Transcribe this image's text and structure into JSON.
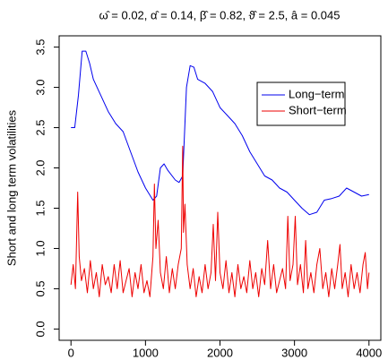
{
  "chart_data": {
    "type": "line",
    "title": "ω̂ = 0.02, α̂ = 0.14, β̂ = 0.82, ϑ̂ = 2.5, â = 0.045",
    "y_label": "Short and long term volatilities",
    "xlim": [
      -159,
      4159
    ],
    "ylim": [
      -0.14,
      3.64
    ],
    "xticks": [
      0,
      1000,
      2000,
      3000,
      4000
    ],
    "yticks": [
      {
        "value": 0,
        "label": "0.0"
      },
      0.5,
      {
        "value": 1,
        "label": "1.0"
      },
      1.5,
      {
        "value": 2,
        "label": "2.0"
      },
      2.5,
      {
        "value": 3,
        "label": "3.0"
      },
      3.5
    ],
    "series": [
      {
        "name": "Long−term",
        "color": "#0000ee",
        "x": [
          0,
          50,
          100,
          150,
          200,
          250,
          300,
          400,
          500,
          600,
          700,
          800,
          900,
          1000,
          1100,
          1150,
          1200,
          1250,
          1300,
          1400,
          1450,
          1500,
          1550,
          1600,
          1650,
          1700,
          1800,
          1900,
          2000,
          2100,
          2200,
          2300,
          2400,
          2500,
          2600,
          2700,
          2800,
          2900,
          3000,
          3100,
          3200,
          3300,
          3400,
          3500,
          3600,
          3700,
          3800,
          3900,
          4000
        ],
        "values": [
          2.5,
          2.5,
          2.9,
          3.45,
          3.45,
          3.3,
          3.1,
          2.9,
          2.7,
          2.55,
          2.45,
          2.2,
          1.95,
          1.75,
          1.6,
          1.65,
          2.0,
          2.05,
          1.97,
          1.85,
          1.82,
          1.9,
          3.0,
          3.27,
          3.25,
          3.1,
          3.05,
          2.95,
          2.75,
          2.65,
          2.55,
          2.4,
          2.2,
          2.05,
          1.9,
          1.85,
          1.75,
          1.7,
          1.6,
          1.5,
          1.42,
          1.45,
          1.6,
          1.62,
          1.65,
          1.75,
          1.7,
          1.65,
          1.67
        ]
      },
      {
        "name": "Short−term",
        "color": "#ee0000",
        "x": [
          0,
          30,
          60,
          90,
          110,
          140,
          180,
          220,
          260,
          300,
          340,
          380,
          420,
          460,
          500,
          540,
          580,
          620,
          660,
          700,
          740,
          780,
          820,
          860,
          900,
          940,
          980,
          1020,
          1060,
          1100,
          1120,
          1140,
          1170,
          1200,
          1240,
          1280,
          1320,
          1360,
          1400,
          1440,
          1480,
          1500,
          1510,
          1530,
          1560,
          1600,
          1640,
          1680,
          1720,
          1760,
          1800,
          1840,
          1880,
          1910,
          1940,
          1970,
          2000,
          2040,
          2080,
          2120,
          2160,
          2200,
          2240,
          2280,
          2320,
          2360,
          2400,
          2440,
          2480,
          2520,
          2560,
          2600,
          2640,
          2680,
          2720,
          2760,
          2800,
          2840,
          2880,
          2910,
          2940,
          2980,
          3010,
          3040,
          3080,
          3120,
          3150,
          3180,
          3220,
          3260,
          3300,
          3340,
          3380,
          3420,
          3460,
          3500,
          3540,
          3580,
          3610,
          3640,
          3680,
          3720,
          3760,
          3800,
          3840,
          3880,
          3920,
          3950,
          3980,
          4000
        ],
        "values": [
          0.55,
          0.8,
          0.5,
          1.7,
          0.9,
          0.6,
          0.75,
          0.45,
          0.85,
          0.5,
          0.7,
          0.4,
          0.8,
          0.55,
          0.65,
          0.45,
          0.8,
          0.5,
          0.85,
          0.45,
          0.6,
          0.75,
          0.4,
          0.7,
          0.5,
          0.8,
          0.45,
          0.6,
          0.4,
          0.9,
          1.8,
          1.0,
          1.35,
          0.7,
          0.5,
          0.9,
          0.45,
          0.75,
          0.5,
          0.8,
          1.0,
          2.27,
          1.2,
          1.55,
          0.8,
          0.5,
          0.75,
          0.4,
          0.65,
          0.45,
          0.8,
          0.5,
          0.7,
          1.3,
          0.6,
          1.45,
          0.7,
          0.5,
          0.85,
          0.45,
          0.7,
          0.4,
          0.8,
          0.5,
          0.65,
          0.45,
          0.85,
          0.5,
          0.7,
          0.4,
          0.75,
          0.55,
          1.1,
          0.5,
          0.8,
          0.45,
          0.6,
          0.75,
          0.5,
          1.4,
          0.6,
          0.8,
          1.4,
          0.55,
          0.8,
          0.45,
          1.1,
          0.5,
          0.7,
          0.45,
          0.8,
          1.0,
          0.5,
          0.7,
          0.4,
          0.75,
          0.5,
          0.8,
          1.05,
          0.5,
          0.7,
          0.4,
          0.8,
          0.5,
          0.7,
          0.45,
          0.8,
          0.95,
          0.5,
          0.7
        ]
      }
    ]
  }
}
